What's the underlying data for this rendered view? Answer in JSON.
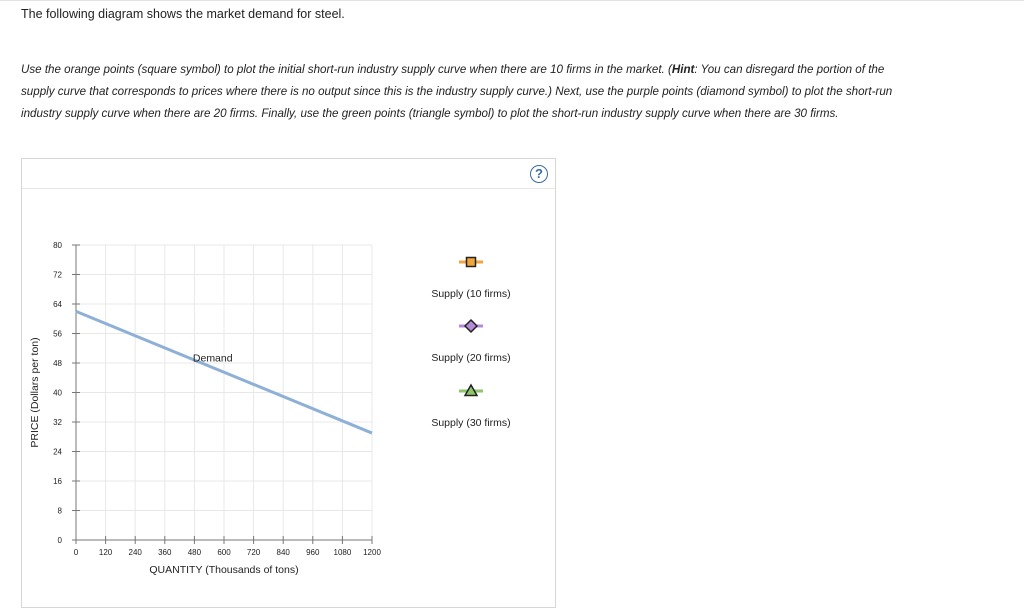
{
  "question": {
    "intro": "The following diagram shows the market demand for steel.",
    "instructions": {
      "part1": "Use the orange points (square symbol) to plot the initial short-run industry supply curve when there are 10 firms in the market. (",
      "hint_label": "Hint",
      "part2": ": You can disregard the portion of the supply curve that corresponds to prices where there is no output since this is the industry supply curve.) Next, use the purple points (diamond symbol) to plot the short-run industry supply curve when there are 20 firms. Finally, use the green points (triangle symbol) to plot the short-run industry supply curve when there are 30 firms."
    }
  },
  "help_icon": "?",
  "colors": {
    "demand": "#8fb0d6",
    "orange": "#f0a53a",
    "purple": "#b58ad7",
    "green": "#8dc66b",
    "grid": "#e8e8e8",
    "axis": "#777777",
    "help": "#3b6aa5"
  },
  "legend": [
    {
      "label": "Supply (10 firms)",
      "symbol": "square",
      "color": "#f0a53a",
      "icon": "orange-square-point-icon"
    },
    {
      "label": "Supply (20 firms)",
      "symbol": "diamond",
      "color": "#b58ad7",
      "icon": "purple-diamond-point-icon"
    },
    {
      "label": "Supply (30 firms)",
      "symbol": "triangle",
      "color": "#8dc66b",
      "icon": "green-triangle-point-icon"
    }
  ],
  "chart_data": {
    "type": "line",
    "title": "",
    "xlabel": "QUANTITY (Thousands of tons)",
    "ylabel": "PRICE (Dollars per ton)",
    "xlim": [
      0,
      1200
    ],
    "ylim": [
      0,
      80
    ],
    "x_ticks": [
      0,
      120,
      240,
      360,
      480,
      600,
      720,
      840,
      960,
      1080,
      1200
    ],
    "y_ticks": [
      0,
      8,
      16,
      24,
      32,
      40,
      48,
      56,
      64,
      72,
      80
    ],
    "grid": true,
    "series": [
      {
        "name": "Demand",
        "x": [
          0,
          1200
        ],
        "y": [
          62,
          29
        ]
      }
    ]
  }
}
